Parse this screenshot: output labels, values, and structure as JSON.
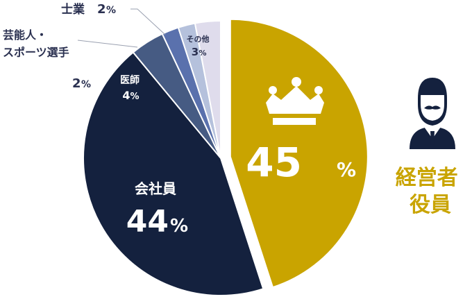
{
  "chart_data": {
    "type": "pie",
    "title": "",
    "slices": [
      {
        "label": "経営者\n役員",
        "value": 45,
        "value_label": "45",
        "unit": "%",
        "color": "#c9a400",
        "exploded": true
      },
      {
        "label": "会社員",
        "value": 44,
        "value_label": "44",
        "unit": "%",
        "color": "#14213e"
      },
      {
        "label": "医師",
        "value": 4,
        "value_label": "4",
        "unit": "%",
        "color": "#465b83"
      },
      {
        "label": "芸能人・\nスポーツ選手",
        "value": 2,
        "value_label": "2",
        "unit": "%",
        "color": "#5a71ad"
      },
      {
        "label": "士業",
        "value": 2,
        "value_label": "2",
        "unit": "%",
        "color": "#b5c1dc"
      },
      {
        "label": "その他",
        "value": 3,
        "value_label": "3",
        "unit": "%",
        "color": "#dfdcec"
      }
    ],
    "icons": [
      "crown-icon",
      "businessman-icon"
    ]
  }
}
